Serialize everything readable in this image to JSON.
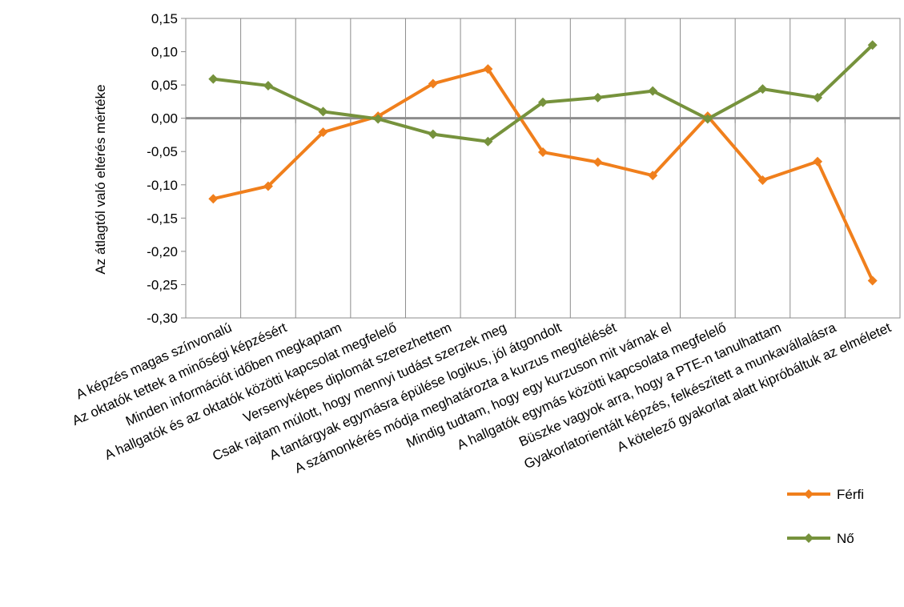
{
  "chart_data": {
    "type": "line",
    "xlabel": "",
    "ylabel": "Az átlagtól való eltérés mértéke",
    "ylim": [
      -0.3,
      0.15
    ],
    "yticks": [
      0.15,
      0.1,
      0.05,
      0.0,
      -0.05,
      -0.1,
      -0.15,
      -0.2,
      -0.25,
      -0.3
    ],
    "ytick_labels": [
      "0,15",
      "0,10",
      "0,05",
      "0,00",
      "-0,05",
      "-0,10",
      "-0,15",
      "-0,20",
      "-0,25",
      "-0,30"
    ],
    "grid": "vertical",
    "legend_position": "bottom-right",
    "categories": [
      "A képzés magas színvonalú",
      "Az oktatók tettek a minőségi képzésért",
      "Minden információt időben megkaptam",
      "A hallgatók és az oktatók közötti kapcsolat megfelelő",
      "Versenyképes diplomát szerezhettem",
      "Csak rajtam múlott, hogy mennyi tudást szerzek meg",
      "A tantárgyak egymásra épülése logikus, jól átgondolt",
      "A számonkérés módja meghatározta a kurzus megítélését",
      "Mindig tudtam, hogy egy kurzuson mit várnak el",
      "A hallgatók egymás közötti kapcsolata megfelelő",
      "Büszke vagyok arra, hogy a PTE-n tanulhattam",
      "Gyakorlatorientált képzés, felkészített a munkavállalásra",
      "A kötelező  gyakorlat alatt kipróbáltuk az elméletet"
    ],
    "series": [
      {
        "name": "Férfi",
        "color": "#F07F1C",
        "values": [
          -0.121,
          -0.102,
          -0.021,
          0.003,
          0.052,
          0.074,
          -0.051,
          -0.066,
          -0.086,
          0.003,
          -0.093,
          -0.065,
          -0.244
        ]
      },
      {
        "name": "Nő",
        "color": "#76923C",
        "values": [
          0.059,
          0.049,
          0.01,
          -0.001,
          -0.024,
          -0.035,
          0.024,
          0.031,
          0.041,
          -0.001,
          0.044,
          0.031,
          0.11
        ]
      }
    ]
  }
}
